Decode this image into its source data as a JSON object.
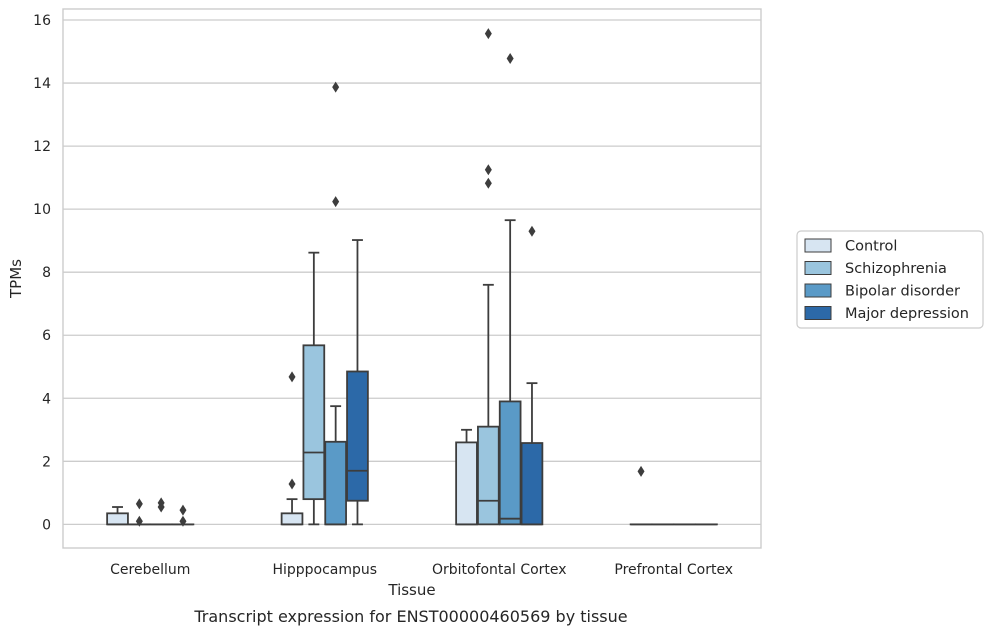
{
  "caption": "Transcript expression for ENST00000460569 by tissue",
  "chart_data": {
    "type": "box",
    "xlabel": "Tissue",
    "ylabel": "TPMs",
    "ylim": [
      -0.75,
      16.35
    ],
    "yticks": [
      0,
      2,
      4,
      6,
      8,
      10,
      12,
      14,
      16
    ],
    "grid": "horizontal",
    "legend_position": "right",
    "categories": [
      "Cerebellum",
      "Hipppocampus",
      "Orbitofontal Cortex",
      "Prefrontal Cortex"
    ],
    "series": [
      {
        "name": "Control",
        "color": "#d7e5f2",
        "boxes": [
          {
            "q1": 0,
            "median": 0,
            "q3": 0.35,
            "whisker_low": 0,
            "whisker_high": 0.55,
            "outliers": []
          },
          {
            "q1": 0,
            "median": 0,
            "q3": 0.35,
            "whisker_low": 0,
            "whisker_high": 0.8,
            "outliers": [
              1.28,
              4.68
            ]
          },
          {
            "q1": 0,
            "median": 0,
            "q3": 2.6,
            "whisker_low": 0,
            "whisker_high": 3.0,
            "outliers": []
          },
          {
            "q1": 0,
            "median": 0,
            "q3": 0,
            "whisker_low": 0,
            "whisker_high": 0,
            "outliers": [
              1.68
            ]
          }
        ]
      },
      {
        "name": "Schizophrenia",
        "color": "#9ac5de",
        "boxes": [
          {
            "q1": 0,
            "median": 0,
            "q3": 0,
            "whisker_low": 0,
            "whisker_high": 0,
            "outliers": [
              0.1,
              0.65
            ]
          },
          {
            "q1": 0.8,
            "median": 2.28,
            "q3": 5.68,
            "whisker_low": 0,
            "whisker_high": 8.62,
            "outliers": []
          },
          {
            "q1": 0,
            "median": 0.75,
            "q3": 3.1,
            "whisker_low": 0,
            "whisker_high": 7.6,
            "outliers": [
              10.82,
              11.25,
              15.57
            ]
          },
          {
            "q1": 0,
            "median": 0,
            "q3": 0,
            "whisker_low": 0,
            "whisker_high": 0,
            "outliers": []
          }
        ]
      },
      {
        "name": "Bipolar disorder",
        "color": "#5a9ac7",
        "boxes": [
          {
            "q1": 0,
            "median": 0,
            "q3": 0,
            "whisker_low": 0,
            "whisker_high": 0,
            "outliers": [
              0.55,
              0.68
            ]
          },
          {
            "q1": 0,
            "median": 0,
            "q3": 2.62,
            "whisker_low": 0,
            "whisker_high": 3.75,
            "outliers": [
              10.24,
              13.87
            ]
          },
          {
            "q1": 0,
            "median": 0.18,
            "q3": 3.9,
            "whisker_low": 0,
            "whisker_high": 9.65,
            "outliers": [
              14.78
            ]
          },
          {
            "q1": 0,
            "median": 0,
            "q3": 0,
            "whisker_low": 0,
            "whisker_high": 0,
            "outliers": []
          }
        ]
      },
      {
        "name": "Major depression",
        "color": "#2c69a8",
        "boxes": [
          {
            "q1": 0,
            "median": 0,
            "q3": 0,
            "whisker_low": 0,
            "whisker_high": 0,
            "outliers": [
              0.1,
              0.45
            ]
          },
          {
            "q1": 0.75,
            "median": 1.7,
            "q3": 4.85,
            "whisker_low": 0,
            "whisker_high": 9.02,
            "outliers": []
          },
          {
            "q1": 0,
            "median": 0,
            "q3": 2.58,
            "whisker_low": 0,
            "whisker_high": 4.48,
            "outliers": [
              9.3
            ]
          },
          {
            "q1": 0,
            "median": 0,
            "q3": 0,
            "whisker_low": 0,
            "whisker_high": 0,
            "outliers": []
          }
        ]
      }
    ]
  }
}
